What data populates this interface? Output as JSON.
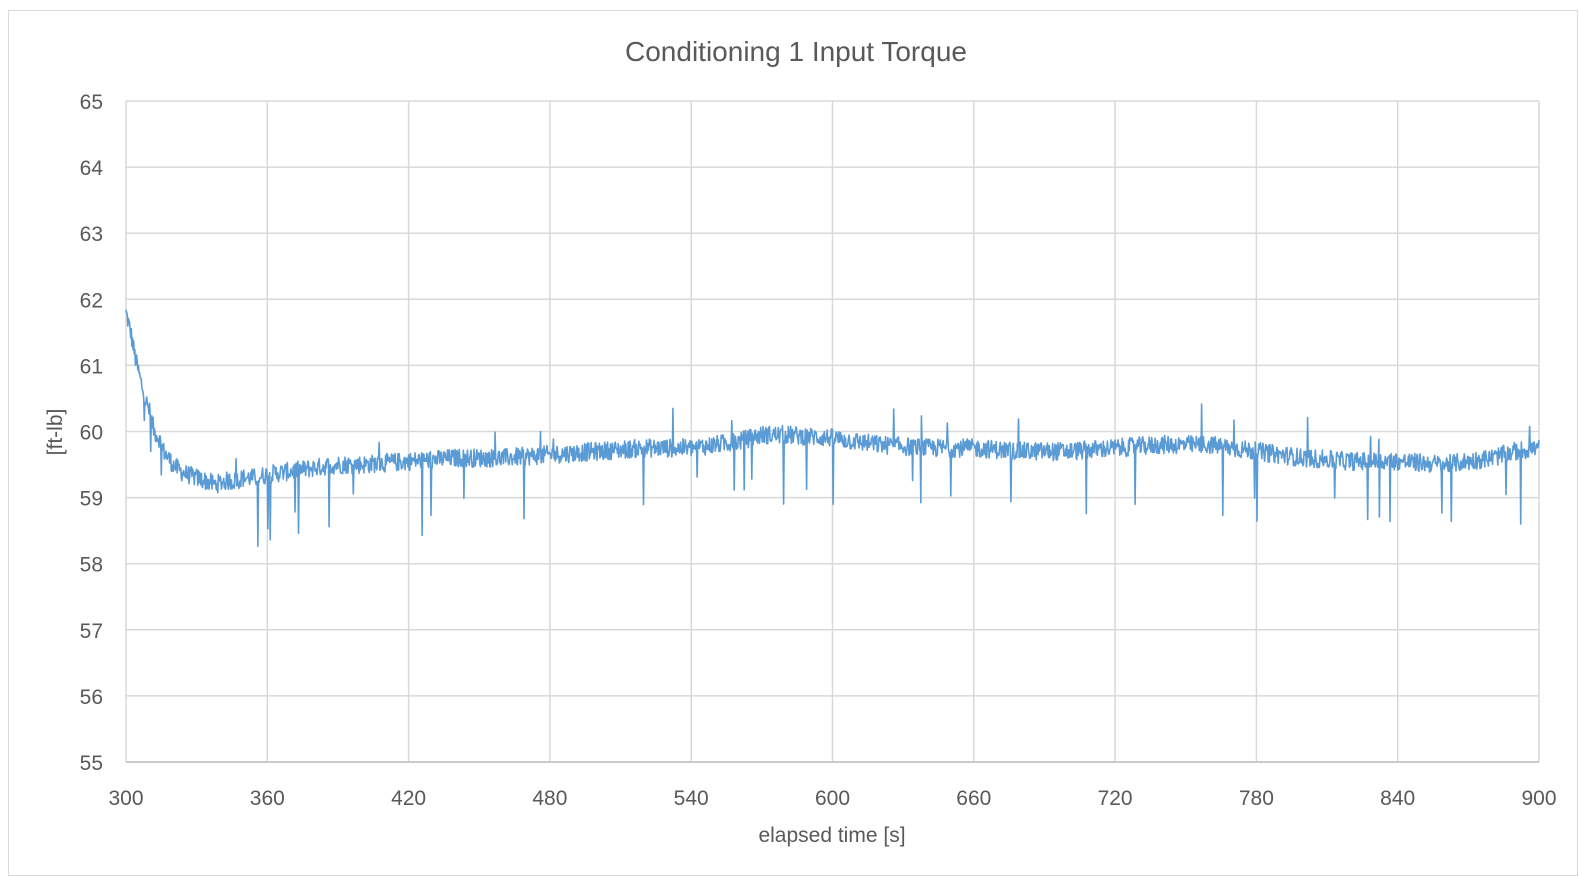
{
  "chart_data": {
    "type": "line",
    "title": "Conditioning 1 Input Torque",
    "xlabel": "elapsed time [s]",
    "ylabel": "[ft-lb]",
    "xlim": [
      300,
      900
    ],
    "ylim": [
      55,
      65
    ],
    "xticks": [
      "300",
      "360",
      "420",
      "480",
      "540",
      "600",
      "660",
      "720",
      "780",
      "840",
      "900"
    ],
    "yticks": [
      "55",
      "56",
      "57",
      "58",
      "59",
      "60",
      "61",
      "62",
      "63",
      "64",
      "65"
    ],
    "grid": true,
    "legend": "none",
    "series": [
      {
        "color": "#5b9bd5",
        "x": [
          300,
          302,
          304,
          306,
          308,
          310,
          312,
          314,
          316,
          318,
          320,
          323,
          326,
          330,
          334,
          338,
          342,
          346,
          350,
          355,
          360,
          370,
          380,
          390,
          400,
          420,
          440,
          460,
          480,
          500,
          520,
          540,
          560,
          570,
          580,
          600,
          620,
          640,
          660,
          680,
          700,
          720,
          740,
          760,
          780,
          800,
          820,
          840,
          860,
          870,
          880,
          890,
          900
        ],
        "values": [
          61.8,
          61.5,
          61.1,
          60.8,
          60.5,
          60.3,
          60.0,
          59.9,
          59.7,
          59.6,
          59.5,
          59.4,
          59.35,
          59.3,
          59.25,
          59.2,
          59.25,
          59.25,
          59.3,
          59.3,
          59.35,
          59.4,
          59.45,
          59.5,
          59.5,
          59.55,
          59.6,
          59.6,
          59.65,
          59.7,
          59.75,
          59.75,
          59.85,
          59.95,
          59.95,
          59.9,
          59.8,
          59.75,
          59.75,
          59.7,
          59.7,
          59.75,
          59.8,
          59.8,
          59.7,
          59.6,
          59.55,
          59.55,
          59.5,
          59.55,
          59.6,
          59.7,
          59.75
        ]
      }
    ]
  }
}
